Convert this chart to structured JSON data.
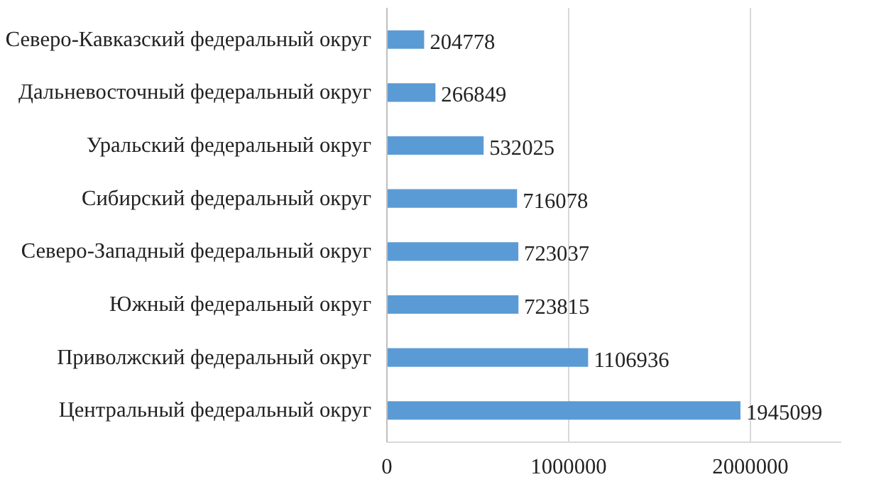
{
  "chart_data": {
    "type": "bar",
    "orientation": "horizontal",
    "categories": [
      "Северо-Кавказский федеральный округ",
      "Дальневосточный федеральный округ",
      "Уральский федеральный округ",
      "Сибирский федеральный округ",
      "Северо-Западный федеральный округ",
      "Южный федеральный округ",
      "Приволжский федеральный округ",
      "Центральный федеральный округ"
    ],
    "values": [
      204778,
      266849,
      532025,
      716078,
      723037,
      723815,
      1106936,
      1945099
    ],
    "color": "#5b9bd5",
    "xlim": [
      0,
      2500000
    ],
    "xticks": [
      0,
      1000000,
      2000000
    ],
    "grid": "x",
    "data_labels": true
  }
}
